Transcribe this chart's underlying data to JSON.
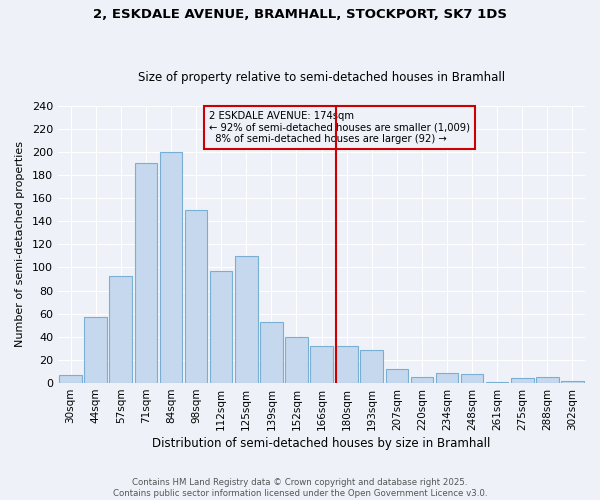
{
  "title_line1": "2, ESKDALE AVENUE, BRAMHALL, STOCKPORT, SK7 1DS",
  "title_line2": "Size of property relative to semi-detached houses in Bramhall",
  "xlabel": "Distribution of semi-detached houses by size in Bramhall",
  "ylabel": "Number of semi-detached properties",
  "categories": [
    "30sqm",
    "44sqm",
    "57sqm",
    "71sqm",
    "84sqm",
    "98sqm",
    "112sqm",
    "125sqm",
    "139sqm",
    "152sqm",
    "166sqm",
    "180sqm",
    "193sqm",
    "207sqm",
    "220sqm",
    "234sqm",
    "248sqm",
    "261sqm",
    "275sqm",
    "288sqm",
    "302sqm"
  ],
  "bar_values": [
    7,
    57,
    93,
    190,
    200,
    150,
    97,
    110,
    53,
    40,
    32,
    32,
    29,
    12,
    5,
    9,
    8,
    1,
    4,
    5,
    2
  ],
  "bar_color": "#c5d8ed",
  "bar_edge_color": "#7aafd4",
  "pct_smaller": "92%",
  "n_smaller": 1009,
  "pct_larger": "8%",
  "n_larger": 92,
  "annotation_box_color": "#cc0000",
  "vline_color": "#cc0000",
  "ylim": [
    0,
    240
  ],
  "yticks": [
    0,
    20,
    40,
    60,
    80,
    100,
    120,
    140,
    160,
    180,
    200,
    220,
    240
  ],
  "footer_line1": "Contains HM Land Registry data © Crown copyright and database right 2025.",
  "footer_line2": "Contains public sector information licensed under the Open Government Licence v3.0.",
  "bg_color": "#eef2f8",
  "grid_color": "#ffffff"
}
